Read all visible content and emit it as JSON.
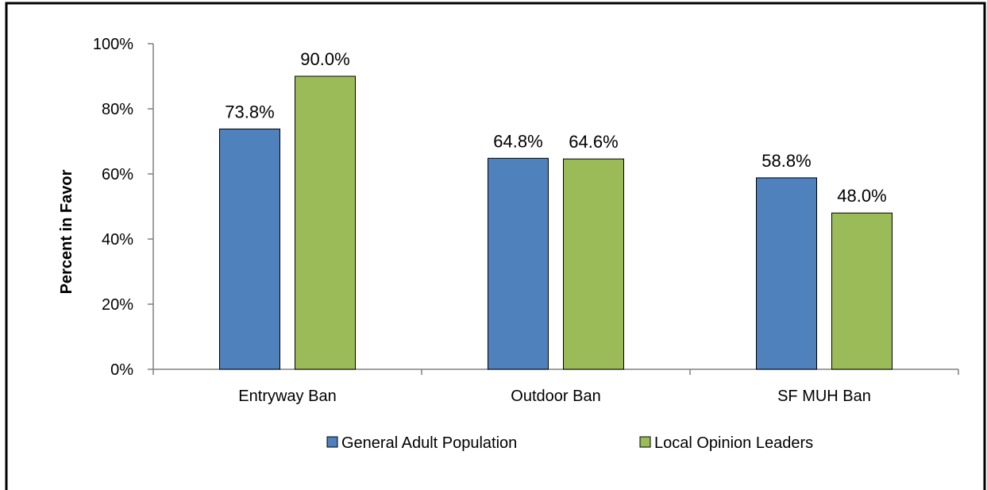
{
  "chart_data": {
    "type": "bar",
    "title": "",
    "xlabel": "",
    "ylabel": "Percent in Favor",
    "categories": [
      "Entryway Ban",
      "Outdoor Ban",
      "SF MUH Ban"
    ],
    "series": [
      {
        "name": "General Adult Population",
        "color": "#4f81bd",
        "values": [
          73.8,
          64.8,
          58.8
        ],
        "labels": [
          "73.8%",
          "64.8%",
          "58.8%"
        ]
      },
      {
        "name": "Local Opinion Leaders",
        "color": "#9bbb59",
        "values": [
          90.0,
          64.6,
          48.0
        ],
        "labels": [
          "90.0%",
          "64.6%",
          "48.0%"
        ]
      }
    ],
    "ylim": [
      0,
      100
    ],
    "yticks": [
      0,
      20,
      40,
      60,
      80,
      100
    ],
    "ytick_labels": [
      "0%",
      "20%",
      "40%",
      "60%",
      "80%",
      "100%"
    ],
    "grid": false,
    "legend": "bottom"
  }
}
